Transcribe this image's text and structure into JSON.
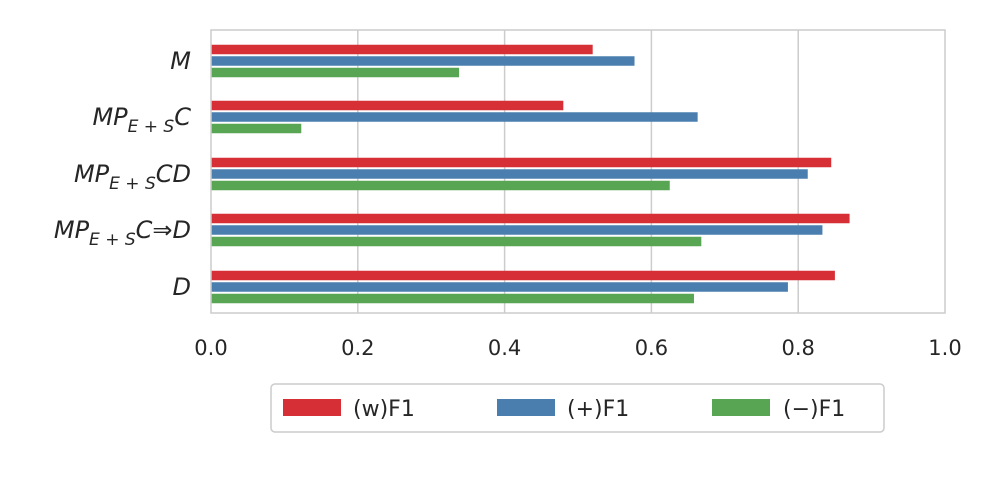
{
  "chart_data": {
    "type": "bar",
    "orientation": "horizontal",
    "categories": [
      {
        "base": "M",
        "sub": "",
        "suffix": ""
      },
      {
        "base": "MP",
        "sub": "E + S",
        "suffix": "C"
      },
      {
        "base": "MP",
        "sub": "E + S",
        "suffix": "CD"
      },
      {
        "base": "MP",
        "sub": "E + S",
        "suffix": "C⇒D"
      },
      {
        "base": "D",
        "sub": "",
        "suffix": ""
      }
    ],
    "series": [
      {
        "name": "(w)F1",
        "color": "#d62f35",
        "values": [
          0.52,
          0.48,
          0.845,
          0.87,
          0.85
        ]
      },
      {
        "name": "(+)F1",
        "color": "#4a7eaf",
        "values": [
          0.577,
          0.663,
          0.813,
          0.833,
          0.786
        ]
      },
      {
        "name": "(−)F1",
        "color": "#58a654",
        "values": [
          0.338,
          0.123,
          0.625,
          0.668,
          0.658
        ]
      }
    ],
    "xlim": [
      0,
      1.0
    ],
    "xticks": [
      "0.0",
      "0.2",
      "0.4",
      "0.6",
      "0.8",
      "1.0"
    ],
    "xtick_values": [
      0,
      0.2,
      0.4,
      0.6,
      0.8,
      1.0
    ],
    "grid": "vertical",
    "legend_position": "bottom-center"
  }
}
